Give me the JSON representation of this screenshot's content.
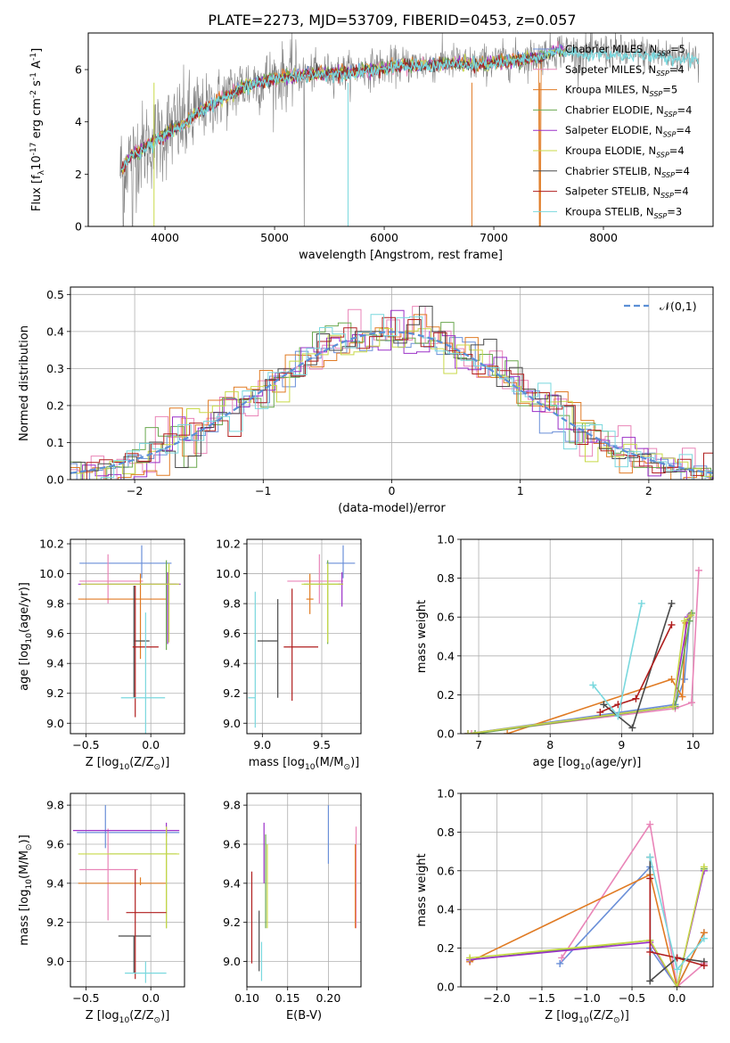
{
  "figure": {
    "title": "PLATE=2273, MJD=53709, FIBERID=0453, z=0.057"
  },
  "models": [
    {
      "label": "Chabrier MILES, N$_{SSP}$=5",
      "color": "#6a8fd8"
    },
    {
      "label": "Salpeter MILES, N$_{SSP}$=4",
      "color": "#e985b8"
    },
    {
      "label": "Kroupa MILES, N$_{SSP}$=5",
      "color": "#e07b24"
    },
    {
      "label": "Chabrier ELODIE, N$_{SSP}$=4",
      "color": "#6aa84f"
    },
    {
      "label": "Salpeter ELODIE, N$_{SSP}$=4",
      "color": "#9b30c8"
    },
    {
      "label": "Kroupa ELODIE, N$_{SSP}$=4",
      "color": "#c8d948"
    },
    {
      "label": "Chabrier STELIB, N$_{SSP}$=4",
      "color": "#4a4a4a"
    },
    {
      "label": "Salpeter STELIB, N$_{SSP}$=4",
      "color": "#b01e1e"
    },
    {
      "label": "Kroupa STELIB, N$_{SSP}$=3",
      "color": "#79d8de"
    }
  ],
  "chart_data": [
    {
      "id": "spectrum",
      "type": "line",
      "xlabel": "wavelength [Angstrom, rest frame]",
      "ylabel": "Flux [f$_\\lambda$10$^{-17}$ erg cm$^{-2}$ s$^{-1}$ A$^{-1}$]",
      "xlim": [
        3300,
        9000
      ],
      "ylim": [
        0,
        7.4
      ],
      "xticks": [
        4000,
        5000,
        6000,
        7000,
        8000
      ],
      "yticks": [
        0,
        2,
        4,
        6
      ],
      "grid": false,
      "legend_position": "top-right",
      "data_color": "#808080",
      "x": [
        3600,
        3700,
        3800,
        3900,
        4000,
        4100,
        4200,
        4300,
        4400,
        4500,
        4600,
        4700,
        4800,
        4900,
        5000,
        5200,
        5400,
        5600,
        5800,
        6000,
        6200,
        6400,
        6600,
        6800,
        7000,
        7200,
        7400,
        7600,
        7800,
        8000,
        8200,
        8400,
        8600,
        8800
      ],
      "model": [
        2.2,
        2.8,
        3.0,
        3.3,
        3.6,
        3.8,
        4.0,
        4.4,
        4.6,
        4.9,
        5.1,
        5.4,
        5.5,
        5.6,
        5.7,
        5.8,
        5.9,
        5.9,
        6.0,
        6.1,
        6.2,
        6.2,
        6.3,
        6.2,
        6.3,
        6.4,
        6.5,
        6.8,
        6.6,
        6.7,
        6.6,
        6.6,
        6.5,
        6.5
      ]
    },
    {
      "id": "residual-histogram",
      "type": "line",
      "xlabel": "(data-model)/error",
      "ylabel": "Normed distribution",
      "xlim": [
        -2.5,
        2.5
      ],
      "ylim": [
        0,
        0.52
      ],
      "xticks": [
        -2,
        -1,
        0,
        1,
        2
      ],
      "yticks": [
        0.0,
        0.1,
        0.2,
        0.3,
        0.4,
        0.5
      ],
      "grid": true,
      "legend_position": "top-right",
      "reference_label": "$\\mathcal{N}(0,1)$",
      "reference_color": "#5b8fd6",
      "bin_width": 0.1
    },
    {
      "id": "age-vs-Z",
      "type": "scatter",
      "xlabel": "Z [log$_{10}$(Z/Z$_\\odot$)]",
      "ylabel": "age  [log$_{10}$(age/yr)]",
      "xlim": [
        -0.62,
        0.26
      ],
      "ylim": [
        8.93,
        10.23
      ],
      "xticks": [
        -0.5,
        0.0
      ],
      "yticks": [
        9.0,
        9.2,
        9.4,
        9.6,
        9.8,
        10.0,
        10.2
      ],
      "grid": true,
      "points": [
        {
          "x": -0.07,
          "y": 10.07,
          "xerr": [
            0.48,
            0.23
          ],
          "yerr": [
            0.1,
            0.12
          ]
        },
        {
          "x": -0.33,
          "y": 9.95,
          "xerr": [
            0.22,
            0.27
          ],
          "yerr": [
            0.15,
            0.18
          ]
        },
        {
          "x": -0.08,
          "y": 9.83,
          "xerr": [
            0.48,
            0.2
          ],
          "yerr": [
            0.4,
            0.17
          ]
        },
        {
          "x": 0.12,
          "y": 9.93,
          "xerr": [
            0.44,
            0.08
          ],
          "yerr": [
            0.44,
            0.16
          ]
        },
        {
          "x": 0.13,
          "y": 9.93,
          "xerr": [
            0.69,
            0.1
          ],
          "yerr": [
            0.4,
            0.08
          ]
        },
        {
          "x": 0.14,
          "y": 9.93,
          "xerr": [
            0.68,
            0.08
          ],
          "yerr": [
            0.39,
            0.14
          ]
        },
        {
          "x": -0.13,
          "y": 9.55,
          "xerr": [
            0.0,
            0.12
          ],
          "yerr": [
            0.38,
            0.37
          ]
        },
        {
          "x": -0.12,
          "y": 9.51,
          "xerr": [
            0.02,
            0.18
          ],
          "yerr": [
            0.47,
            0.41
          ]
        },
        {
          "x": -0.04,
          "y": 9.17,
          "xerr": [
            0.19,
            0.15
          ],
          "yerr": [
            0.25,
            0.57
          ]
        }
      ]
    },
    {
      "id": "age-vs-mass",
      "type": "scatter",
      "xlabel": "mass [log$_{10}$(M/M$_\\odot$)]",
      "ylabel": "",
      "xlim": [
        8.87,
        9.83
      ],
      "ylim": [
        8.93,
        10.23
      ],
      "xticks": [
        9.0,
        9.5
      ],
      "yticks": [
        9.0,
        9.2,
        9.4,
        9.6,
        9.8,
        10.0,
        10.2
      ],
      "grid": true,
      "points": [
        {
          "x": 9.68,
          "y": 10.07,
          "xerr": [
            0.14,
            0.1
          ],
          "yerr": [
            0.1,
            0.12
          ]
        },
        {
          "x": 9.48,
          "y": 9.95,
          "xerr": [
            0.27,
            0.2
          ],
          "yerr": [
            0.15,
            0.18
          ]
        },
        {
          "x": 9.4,
          "y": 9.83,
          "xerr": [
            0.03,
            0.03
          ],
          "yerr": [
            0.1,
            0.17
          ]
        },
        {
          "x": 9.55,
          "y": 9.93,
          "xerr": [
            0.2,
            0.13
          ],
          "yerr": [
            0.4,
            0.16
          ]
        },
        {
          "x": 9.67,
          "y": 9.93,
          "xerr": [
            0.03,
            0.01
          ],
          "yerr": [
            0.15,
            0.08
          ]
        },
        {
          "x": 9.55,
          "y": 9.93,
          "xerr": [
            0.22,
            0.13
          ],
          "yerr": [
            0.39,
            0.14
          ]
        },
        {
          "x": 9.13,
          "y": 9.55,
          "xerr": [
            0.17,
            0.0
          ],
          "yerr": [
            0.38,
            0.28
          ]
        },
        {
          "x": 9.25,
          "y": 9.51,
          "xerr": [
            0.07,
            0.22
          ],
          "yerr": [
            0.36,
            0.39
          ]
        },
        {
          "x": 8.94,
          "y": 9.17,
          "xerr": [
            0.06,
            0.0
          ],
          "yerr": [
            0.2,
            0.71
          ]
        }
      ]
    },
    {
      "id": "weight-vs-age",
      "type": "line",
      "xlabel": "age  [log$_{10}$(age/yr)]",
      "ylabel": "mass weight",
      "xlim": [
        6.75,
        10.28
      ],
      "ylim": [
        0.0,
        1.0
      ],
      "xticks": [
        7,
        8,
        9,
        10
      ],
      "yticks": [
        0.0,
        0.2,
        0.4,
        0.6,
        0.8,
        1.0
      ],
      "grid": true,
      "series": [
        {
          "x": [
            6.85,
            9.75,
            9.88,
            9.95
          ],
          "y": [
            0.0,
            0.15,
            0.28,
            0.58
          ]
        },
        {
          "x": [
            6.9,
            9.75,
            9.98,
            10.08
          ],
          "y": [
            0.0,
            0.13,
            0.16,
            0.84
          ]
        },
        {
          "x": [
            7.4,
            9.7,
            9.85,
            9.9
          ],
          "y": [
            0.0,
            0.28,
            0.19,
            0.57
          ]
        },
        {
          "x": [
            6.95,
            9.75,
            9.95,
            9.98
          ],
          "y": [
            0.0,
            0.14,
            0.58,
            0.62
          ]
        },
        {
          "x": [
            6.85,
            9.72,
            9.93,
            9.96
          ],
          "y": [
            0.0,
            0.14,
            0.6,
            0.61
          ]
        },
        {
          "x": [
            6.85,
            9.72,
            9.88,
            9.97
          ],
          "y": [
            0.0,
            0.14,
            0.58,
            0.61
          ]
        },
        {
          "x": [
            8.75,
            9.15,
            9.7
          ],
          "y": [
            0.15,
            0.03,
            0.67
          ]
        },
        {
          "x": [
            8.7,
            8.95,
            9.2,
            9.7
          ],
          "y": [
            0.11,
            0.15,
            0.18,
            0.56
          ]
        },
        {
          "x": [
            8.6,
            8.95,
            9.28
          ],
          "y": [
            0.25,
            0.09,
            0.67
          ]
        }
      ]
    },
    {
      "id": "mass-vs-Z",
      "type": "scatter",
      "xlabel": "Z [log$_{10}$(Z/Z$_\\odot$)]",
      "ylabel": "mass [log$_{10}$(M/M$_\\odot$)]",
      "xlim": [
        -0.62,
        0.26
      ],
      "ylim": [
        8.87,
        9.86
      ],
      "xticks": [
        -0.5,
        0.0
      ],
      "yticks": [
        9.0,
        9.2,
        9.4,
        9.6,
        9.8
      ],
      "grid": true,
      "points": [
        {
          "x": -0.35,
          "y": 9.66,
          "xerr": [
            0.22,
            0.57
          ],
          "yerr": [
            0.08,
            0.14
          ]
        },
        {
          "x": -0.33,
          "y": 9.47,
          "xerr": [
            0.22,
            0.23
          ],
          "yerr": [
            0.26,
            0.21
          ]
        },
        {
          "x": -0.08,
          "y": 9.4,
          "xerr": [
            0.48,
            0.2
          ],
          "yerr": [
            0.01,
            0.03
          ]
        },
        {
          "x": 0.12,
          "y": 9.55,
          "xerr": [
            0.44,
            0.08
          ],
          "yerr": [
            0.38,
            0.13
          ]
        },
        {
          "x": 0.12,
          "y": 9.67,
          "xerr": [
            0.72,
            0.1
          ],
          "yerr": [
            0.03,
            0.04
          ]
        },
        {
          "x": 0.12,
          "y": 9.55,
          "xerr": [
            0.68,
            0.1
          ],
          "yerr": [
            0.38,
            0.14
          ]
        },
        {
          "x": -0.13,
          "y": 9.13,
          "xerr": [
            0.12,
            0.13
          ],
          "yerr": [
            0.19,
            0.0
          ]
        },
        {
          "x": -0.12,
          "y": 9.25,
          "xerr": [
            0.07,
            0.24
          ],
          "yerr": [
            0.34,
            0.22
          ]
        },
        {
          "x": -0.04,
          "y": 8.94,
          "xerr": [
            0.16,
            0.16
          ],
          "yerr": [
            0.05,
            0.06
          ]
        }
      ]
    },
    {
      "id": "mass-vs-EBV",
      "type": "scatter",
      "xlabel": "E(B-V)",
      "ylabel": "",
      "xlim": [
        0.1,
        0.24
      ],
      "ylim": [
        8.87,
        9.86
      ],
      "xticks": [
        0.1,
        0.15,
        0.2
      ],
      "yticks": [
        9.0,
        9.2,
        9.4,
        9.6,
        9.8
      ],
      "grid": true,
      "points": [
        {
          "x": 0.2,
          "y": 9.66,
          "ylo": 9.5,
          "yhi": 9.8
        },
        {
          "x": 0.234,
          "y": 9.47,
          "ylo": 9.17,
          "yhi": 9.69
        },
        {
          "x": 0.233,
          "y": 9.4,
          "ylo": 9.17,
          "yhi": 9.6
        },
        {
          "x": 0.123,
          "y": 9.55,
          "ylo": 9.17,
          "yhi": 9.65
        },
        {
          "x": 0.121,
          "y": 9.67,
          "ylo": 9.4,
          "yhi": 9.71
        },
        {
          "x": 0.125,
          "y": 9.55,
          "ylo": 9.17,
          "yhi": 9.6
        },
        {
          "x": 0.115,
          "y": 9.13,
          "ylo": 8.95,
          "yhi": 9.26
        },
        {
          "x": 0.106,
          "y": 9.25,
          "ylo": 8.99,
          "yhi": 9.46
        },
        {
          "x": 0.118,
          "y": 8.94,
          "ylo": 8.9,
          "yhi": 9.1
        }
      ]
    },
    {
      "id": "weight-vs-Z",
      "type": "line",
      "xlabel": "Z [log$_{10}$(Z/Z$_\\odot$)]",
      "ylabel": "mass weight",
      "xlim": [
        -2.4,
        0.4
      ],
      "ylim": [
        0.0,
        1.0
      ],
      "xticks": [
        -2.0,
        -1.5,
        -1.0,
        -0.5,
        0.0
      ],
      "yticks": [
        0.0,
        0.2,
        0.4,
        0.6,
        0.8,
        1.0
      ],
      "grid": true,
      "series": [
        {
          "x": [
            -1.3,
            -0.3,
            -0.3,
            0.0,
            0.3
          ],
          "y": [
            0.12,
            0.62,
            0.2,
            0.0,
            0.28
          ]
        },
        {
          "x": [
            -1.28,
            -0.3,
            0.0,
            0.3
          ],
          "y": [
            0.15,
            0.84,
            0.0,
            0.12
          ]
        },
        {
          "x": [
            -2.3,
            -0.3,
            0.0,
            0.3
          ],
          "y": [
            0.13,
            0.58,
            0.0,
            0.28
          ]
        },
        {
          "x": [
            -2.3,
            -0.3,
            0.0,
            0.3
          ],
          "y": [
            0.14,
            0.24,
            0.0,
            0.61
          ]
        },
        {
          "x": [
            -2.3,
            -0.3,
            0.0,
            0.3
          ],
          "y": [
            0.14,
            0.23,
            0.0,
            0.6
          ]
        },
        {
          "x": [
            -2.3,
            -0.3,
            0.0,
            0.3
          ],
          "y": [
            0.15,
            0.24,
            0.0,
            0.62
          ]
        },
        {
          "x": [
            -0.3,
            -0.3,
            0.0,
            0.3
          ],
          "y": [
            0.67,
            0.03,
            0.15,
            0.13
          ]
        },
        {
          "x": [
            -0.3,
            -0.3,
            0.0,
            0.3
          ],
          "y": [
            0.56,
            0.18,
            0.15,
            0.11
          ]
        },
        {
          "x": [
            -0.3,
            0.0,
            0.3
          ],
          "y": [
            0.67,
            0.09,
            0.25
          ]
        }
      ]
    }
  ]
}
